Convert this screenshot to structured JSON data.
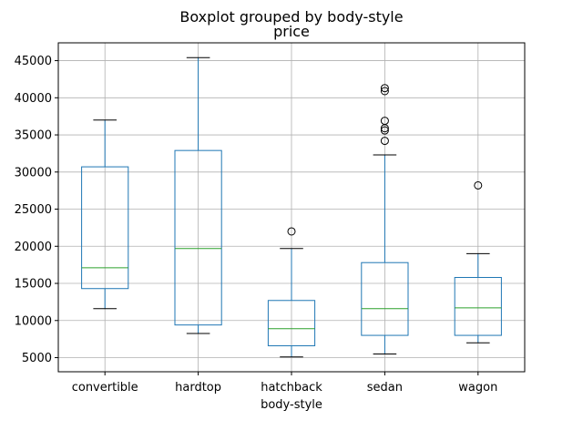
{
  "chart_data": {
    "type": "boxplot",
    "suptitle": "Boxplot grouped by body-style",
    "title": "price",
    "xlabel": "body-style",
    "ylabel": "",
    "ylim": [
      3100,
      47400
    ],
    "yticks": [
      5000,
      10000,
      15000,
      20000,
      25000,
      30000,
      35000,
      40000,
      45000
    ],
    "grid": true,
    "colors": {
      "box": "#1f77b4",
      "median": "#2ca02c",
      "whisker": "#1f77b4",
      "cap": "#000000",
      "grid": "#b0b0b0",
      "flier": "#000000"
    },
    "categories": [
      "convertible",
      "hardtop",
      "hatchback",
      "sedan",
      "wagon"
    ],
    "boxes": [
      {
        "label": "convertible",
        "whislo": 11600,
        "q1": 14300,
        "med": 17100,
        "q3": 30700,
        "whishi": 37000,
        "fliers": []
      },
      {
        "label": "hardtop",
        "whislo": 8250,
        "q1": 9400,
        "med": 19700,
        "q3": 32900,
        "whishi": 45400,
        "fliers": []
      },
      {
        "label": "hatchback",
        "whislo": 5100,
        "q1": 6600,
        "med": 8900,
        "q3": 12700,
        "whishi": 19700,
        "fliers": [
          22000
        ]
      },
      {
        "label": "sedan",
        "whislo": 5500,
        "q1": 8000,
        "med": 11600,
        "q3": 17800,
        "whishi": 32300,
        "fliers": [
          34200,
          35600,
          35900,
          36900,
          40900,
          41300
        ]
      },
      {
        "label": "wagon",
        "whislo": 7000,
        "q1": 8000,
        "med": 11700,
        "q3": 15800,
        "whishi": 19000,
        "fliers": [
          28200
        ]
      }
    ]
  }
}
